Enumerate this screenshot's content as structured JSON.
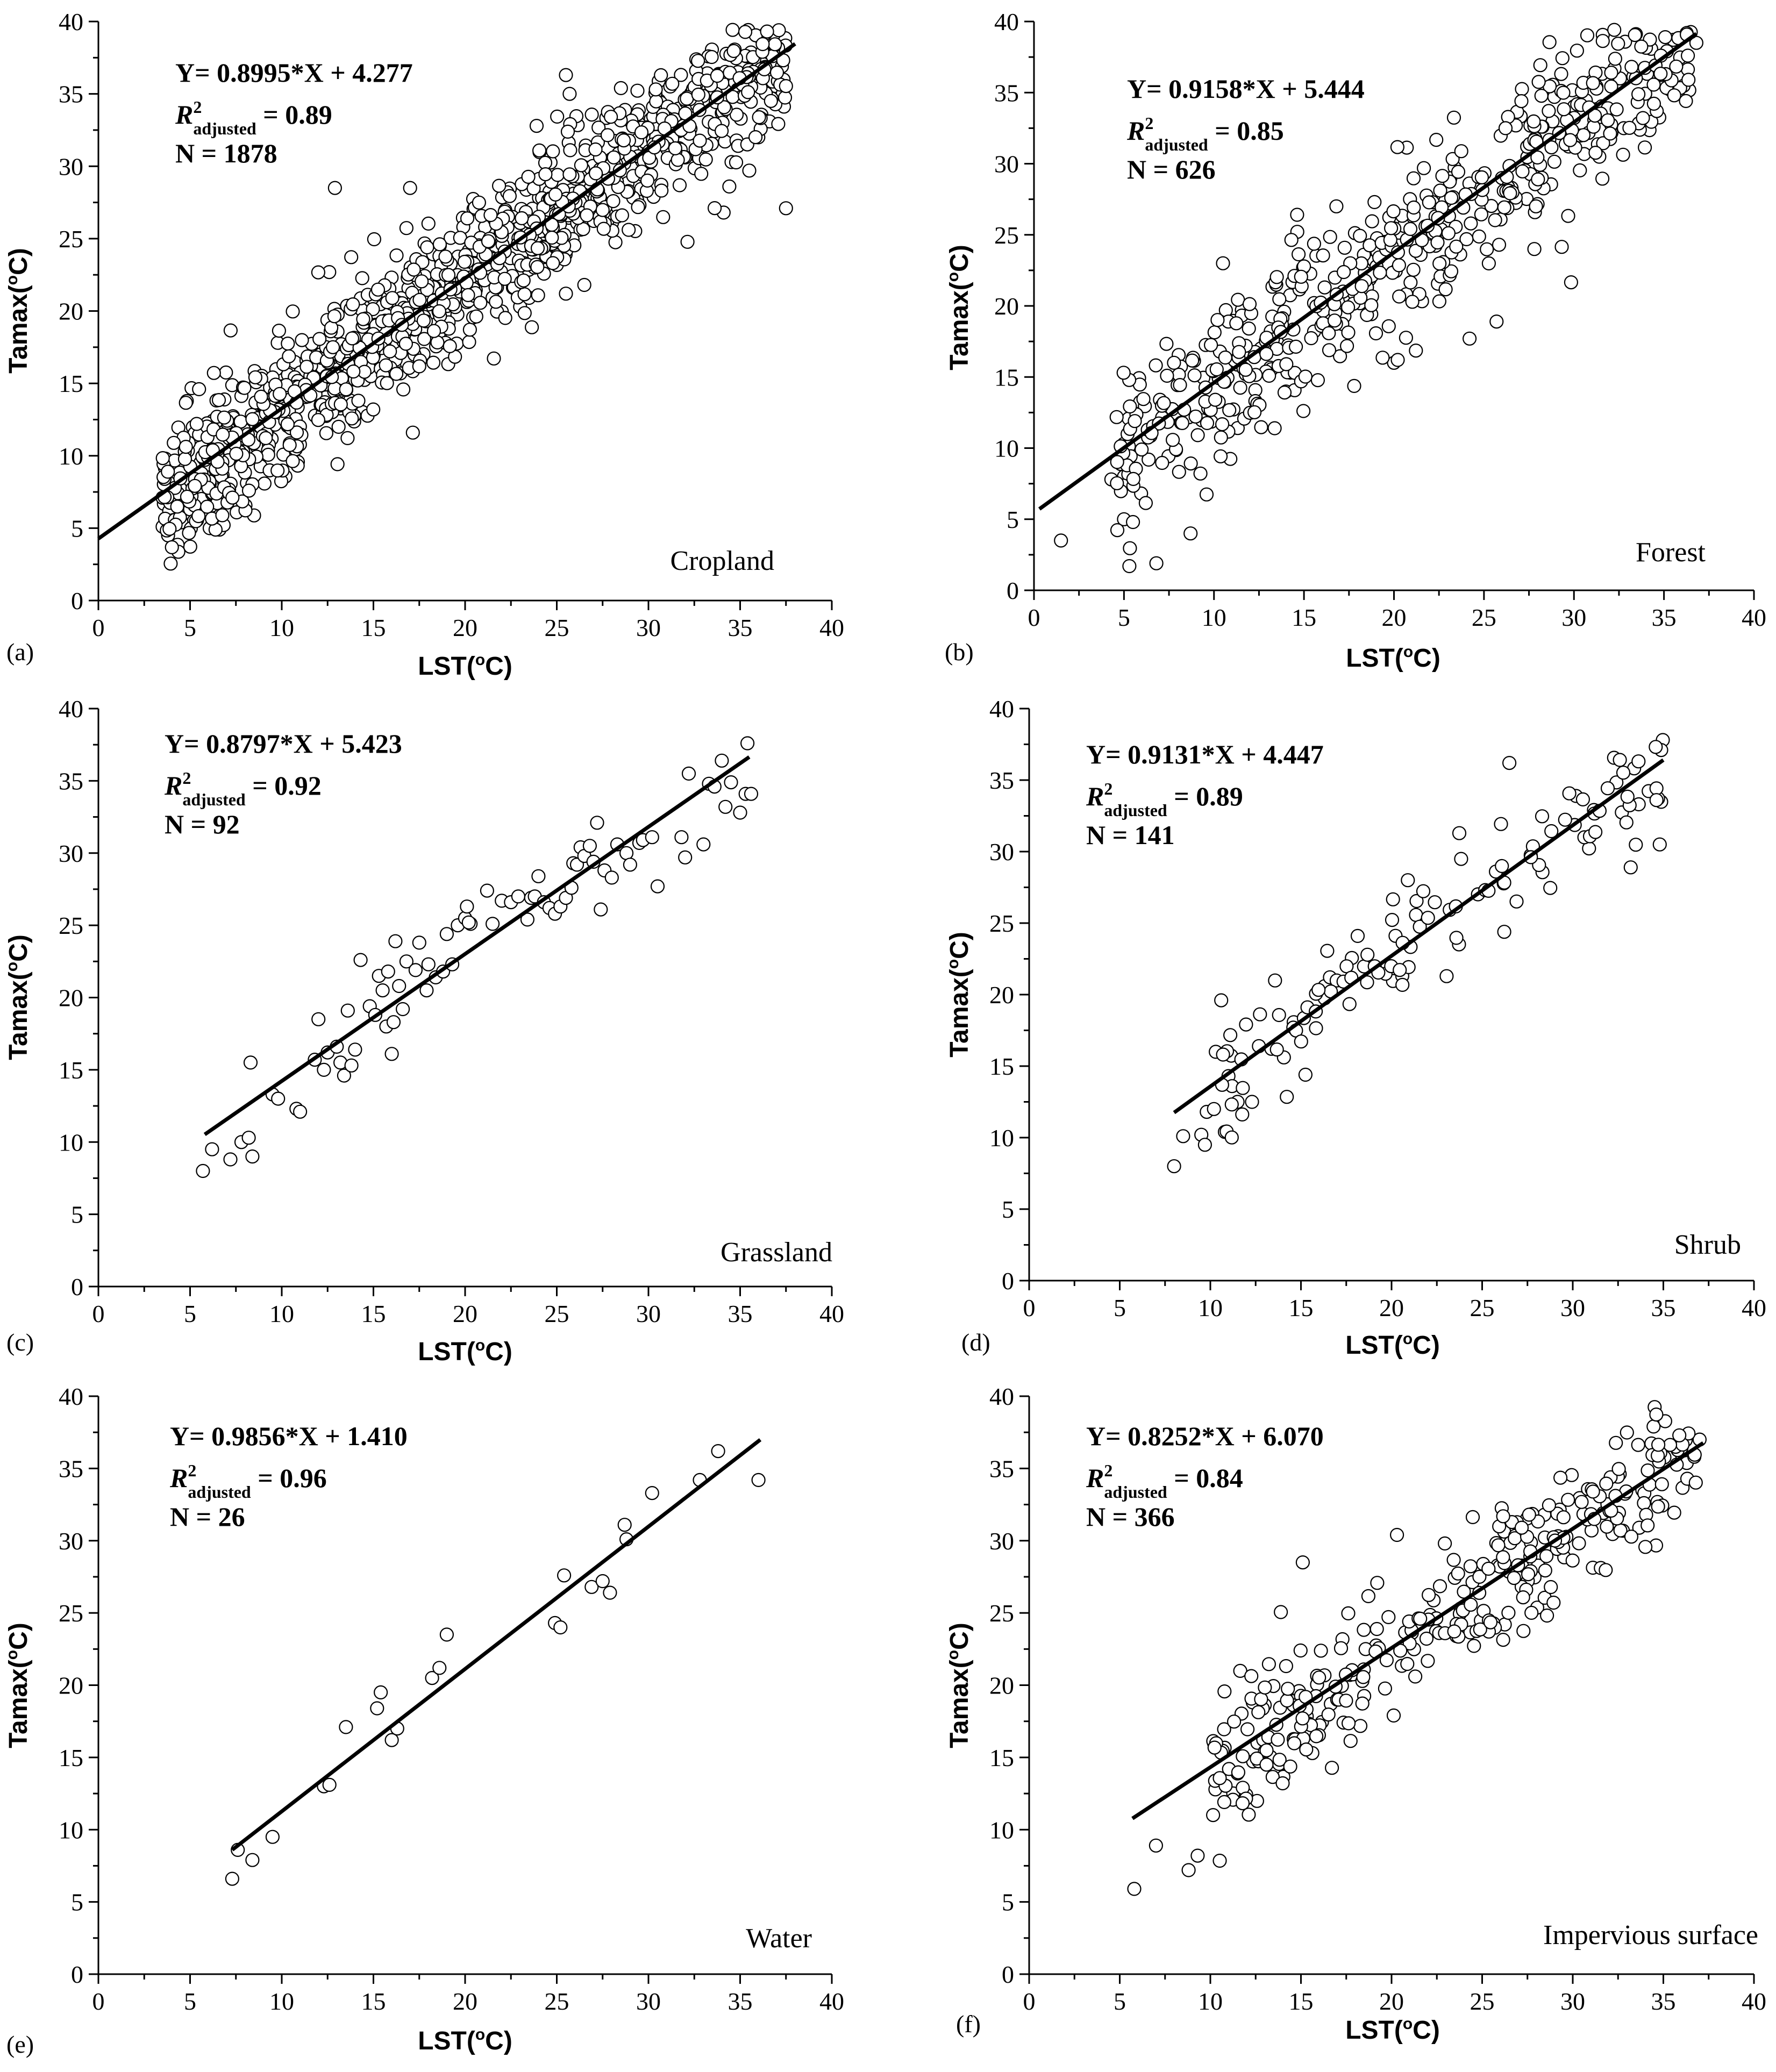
{
  "figure": {
    "x_axis_label": "LST(",
    "x_axis_unit_sup": "o",
    "x_axis_unit_tail": "C)",
    "y_axis_label": "Tamax(",
    "y_axis_unit_sup": "o",
    "y_axis_unit_tail": "C)"
  },
  "chart_data": [
    {
      "type": "scatter",
      "panel": "(a)",
      "class_name": "Cropland",
      "equation": "Y= 0.8995*X + 4.277",
      "r2_prefix": "R",
      "r2_sup": "2",
      "r2_sub": "adjusted",
      "r2_value": " = 0.89",
      "n_text": "N = 1878",
      "slope": 0.8995,
      "intercept": 4.277,
      "r2_adjusted": 0.89,
      "n": 1878,
      "xlim": [
        0,
        40
      ],
      "ylim": [
        0,
        40
      ],
      "xticks": [
        0,
        5,
        10,
        15,
        20,
        25,
        30,
        35,
        40
      ],
      "yticks": [
        0,
        5,
        10,
        15,
        20,
        25,
        30,
        35,
        40
      ],
      "fit_x_range": [
        0,
        38
      ],
      "sample_x_range": [
        3.5,
        37.5
      ],
      "sample_size": 1200,
      "sample_spread": 2.4,
      "points": [
        [
          3.5,
          5.1
        ],
        [
          3.8,
          4.5
        ],
        [
          4.2,
          5.9
        ],
        [
          5.0,
          6.3
        ],
        [
          6.6,
          4.9
        ],
        [
          6.4,
          9.0
        ],
        [
          12.9,
          28.5
        ],
        [
          17.0,
          28.5
        ],
        [
          23.0,
          20.3
        ],
        [
          25.5,
          21.2
        ],
        [
          25.5,
          36.3
        ],
        [
          25.7,
          35.0
        ],
        [
          26.5,
          21.8
        ],
        [
          34.1,
          26.8
        ],
        [
          35.5,
          29.7
        ],
        [
          37.5,
          27.1
        ]
      ]
    },
    {
      "type": "scatter",
      "panel": "(b)",
      "class_name": "Forest",
      "equation": "Y= 0.9158*X + 5.444",
      "r2_prefix": "R",
      "r2_sup": "2",
      "r2_sub": "adjusted",
      "r2_value": " = 0.85",
      "n_text": "N = 626",
      "slope": 0.9158,
      "intercept": 5.444,
      "r2_adjusted": 0.85,
      "n": 626,
      "xlim": [
        0,
        40
      ],
      "ylim": [
        0,
        40
      ],
      "xticks": [
        0,
        5,
        10,
        15,
        20,
        25,
        30,
        35,
        40
      ],
      "yticks": [
        0,
        5,
        10,
        15,
        20,
        25,
        30,
        35,
        40
      ],
      "fit_x_range": [
        0.3,
        36.8
      ],
      "sample_x_range": [
        4.5,
        36.5
      ],
      "sample_size": 560,
      "sample_spread": 2.8,
      "points": [
        [
          1.5,
          3.5
        ],
        [
          5.0,
          5.0
        ],
        [
          5.5,
          4.8
        ],
        [
          5.3,
          1.7
        ],
        [
          6.8,
          1.9
        ],
        [
          8.7,
          4.0
        ],
        [
          5.0,
          8.0
        ],
        [
          4.3,
          7.8
        ],
        [
          10.5,
          23.0
        ],
        [
          16.8,
          27.0
        ],
        [
          20.0,
          16.0
        ],
        [
          24.2,
          17.7
        ],
        [
          25.7,
          18.9
        ],
        [
          27.8,
          24.0
        ],
        [
          36.8,
          38.5
        ]
      ]
    },
    {
      "type": "scatter",
      "panel": "(c)",
      "class_name": "Grassland",
      "equation": "Y= 0.8797*X + 5.423",
      "r2_prefix": "R",
      "r2_sup": "2",
      "r2_sub": "adjusted",
      "r2_value": " = 0.92",
      "n_text": "N = 92",
      "slope": 0.8797,
      "intercept": 5.423,
      "r2_adjusted": 0.92,
      "n": 92,
      "xlim": [
        0,
        40
      ],
      "ylim": [
        0,
        40
      ],
      "xticks": [
        0,
        5,
        10,
        15,
        20,
        25,
        30,
        35,
        40
      ],
      "yticks": [
        0,
        5,
        10,
        15,
        20,
        25,
        30,
        35,
        40
      ],
      "fit_x_range": [
        5.8,
        35.5
      ],
      "points": [
        [
          5.7,
          8.0
        ],
        [
          6.2,
          9.5
        ],
        [
          7.2,
          8.8
        ],
        [
          7.8,
          10.0
        ],
        [
          8.2,
          10.3
        ],
        [
          8.4,
          9.0
        ],
        [
          8.3,
          15.5
        ],
        [
          9.5,
          13.3
        ],
        [
          9.8,
          13.0
        ],
        [
          10.8,
          12.3
        ],
        [
          11.0,
          12.1
        ],
        [
          11.8,
          15.7
        ],
        [
          12.0,
          18.5
        ],
        [
          12.3,
          15.0
        ],
        [
          12.5,
          16.2
        ],
        [
          13.0,
          16.6
        ],
        [
          13.2,
          15.5
        ],
        [
          13.4,
          14.6
        ],
        [
          13.6,
          19.1
        ],
        [
          13.8,
          15.3
        ],
        [
          14.0,
          16.4
        ],
        [
          14.3,
          22.6
        ],
        [
          14.8,
          19.4
        ],
        [
          15.1,
          18.8
        ],
        [
          15.3,
          21.5
        ],
        [
          15.5,
          20.5
        ],
        [
          15.7,
          18.0
        ],
        [
          15.8,
          21.8
        ],
        [
          16.0,
          16.1
        ],
        [
          16.1,
          18.3
        ],
        [
          16.2,
          23.9
        ],
        [
          16.4,
          20.8
        ],
        [
          16.6,
          19.2
        ],
        [
          16.8,
          22.5
        ],
        [
          17.5,
          23.8
        ],
        [
          17.9,
          20.5
        ],
        [
          18.0,
          22.3
        ],
        [
          18.4,
          21.4
        ],
        [
          18.8,
          21.8
        ],
        [
          19.0,
          24.4
        ],
        [
          19.3,
          22.3
        ],
        [
          19.6,
          25.0
        ],
        [
          20.0,
          25.5
        ],
        [
          20.1,
          26.3
        ],
        [
          20.3,
          25.1
        ],
        [
          21.2,
          27.4
        ],
        [
          21.5,
          25.1
        ],
        [
          22.0,
          26.7
        ],
        [
          22.5,
          26.6
        ],
        [
          22.9,
          27.0
        ],
        [
          23.4,
          25.4
        ],
        [
          23.6,
          26.9
        ],
        [
          23.8,
          27.0
        ],
        [
          24.0,
          28.4
        ],
        [
          24.3,
          26.6
        ],
        [
          24.6,
          26.2
        ],
        [
          24.9,
          25.8
        ],
        [
          25.2,
          26.3
        ],
        [
          25.5,
          26.9
        ],
        [
          25.8,
          27.6
        ],
        [
          25.9,
          29.3
        ],
        [
          26.1,
          29.2
        ],
        [
          26.3,
          30.4
        ],
        [
          26.5,
          29.8
        ],
        [
          26.8,
          30.5
        ],
        [
          27.0,
          29.4
        ],
        [
          27.2,
          32.1
        ],
        [
          27.4,
          26.1
        ],
        [
          27.6,
          28.8
        ],
        [
          28.0,
          28.3
        ],
        [
          28.3,
          30.6
        ],
        [
          28.8,
          30.0
        ],
        [
          29.0,
          29.2
        ],
        [
          29.5,
          30.7
        ],
        [
          29.7,
          30.9
        ],
        [
          30.2,
          31.1
        ],
        [
          30.5,
          27.7
        ],
        [
          31.8,
          31.1
        ],
        [
          32.0,
          29.7
        ],
        [
          32.2,
          35.5
        ],
        [
          33.0,
          30.6
        ],
        [
          33.3,
          34.8
        ],
        [
          33.6,
          34.6
        ],
        [
          34.0,
          36.4
        ],
        [
          34.2,
          33.2
        ],
        [
          34.5,
          34.9
        ],
        [
          35.0,
          32.8
        ],
        [
          35.3,
          34.1
        ],
        [
          35.6,
          34.1
        ],
        [
          35.4,
          37.6
        ],
        [
          20.2,
          25.2
        ],
        [
          17.3,
          21.9
        ]
      ]
    },
    {
      "type": "scatter",
      "panel": "(d)",
      "class_name": "Shrub",
      "equation": "Y= 0.9131*X + 4.447",
      "r2_prefix": "R",
      "r2_sup": "2",
      "r2_sub": "adjusted",
      "r2_value": " = 0.89",
      "n_text": "N = 141",
      "slope": 0.9131,
      "intercept": 4.447,
      "r2_adjusted": 0.89,
      "n": 141,
      "xlim": [
        0,
        40
      ],
      "ylim": [
        0,
        40
      ],
      "xticks": [
        0,
        5,
        10,
        15,
        20,
        25,
        30,
        35,
        40
      ],
      "yticks": [
        0,
        5,
        10,
        15,
        20,
        25,
        30,
        35,
        40
      ],
      "fit_x_range": [
        8.0,
        35.0
      ],
      "sample_x_range": [
        10.5,
        35.2
      ],
      "sample_size": 125,
      "sample_spread": 2.0,
      "points": [
        [
          8.0,
          8.0
        ],
        [
          8.5,
          10.1
        ],
        [
          9.5,
          10.2
        ],
        [
          9.7,
          9.5
        ],
        [
          9.8,
          11.8
        ],
        [
          10.2,
          12.0
        ],
        [
          10.3,
          16.0
        ],
        [
          10.6,
          19.6
        ],
        [
          10.8,
          10.4
        ],
        [
          11.0,
          14.3
        ],
        [
          11.2,
          13.6
        ],
        [
          11.5,
          12.5
        ],
        [
          12.3,
          12.5
        ],
        [
          26.5,
          36.2
        ],
        [
          33.2,
          28.9
        ],
        [
          34.8,
          30.5
        ]
      ]
    },
    {
      "type": "scatter",
      "panel": "(e)",
      "class_name": "Water",
      "equation": "Y= 0.9856*X + 1.410",
      "r2_prefix": "R",
      "r2_sup": "2",
      "r2_sub": "adjusted",
      "r2_value": " = 0.96",
      "n_text": "N = 26",
      "slope": 0.9856,
      "intercept": 1.41,
      "r2_adjusted": 0.96,
      "n": 26,
      "xlim": [
        0,
        40
      ],
      "ylim": [
        0,
        40
      ],
      "xticks": [
        0,
        5,
        10,
        15,
        20,
        25,
        30,
        35,
        40
      ],
      "yticks": [
        0,
        5,
        10,
        15,
        20,
        25,
        30,
        35,
        40
      ],
      "fit_x_range": [
        7.3,
        36.1
      ],
      "points": [
        [
          7.3,
          6.6
        ],
        [
          7.6,
          8.6
        ],
        [
          8.4,
          7.9
        ],
        [
          9.5,
          9.5
        ],
        [
          12.3,
          13.0
        ],
        [
          12.6,
          13.1
        ],
        [
          13.5,
          17.1
        ],
        [
          15.2,
          18.4
        ],
        [
          15.4,
          19.5
        ],
        [
          16.0,
          16.2
        ],
        [
          16.3,
          17.0
        ],
        [
          18.2,
          20.5
        ],
        [
          18.6,
          21.2
        ],
        [
          19.0,
          23.5
        ],
        [
          24.9,
          24.3
        ],
        [
          25.2,
          24.0
        ],
        [
          25.4,
          27.6
        ],
        [
          26.9,
          26.8
        ],
        [
          27.5,
          27.2
        ],
        [
          27.9,
          26.4
        ],
        [
          28.7,
          31.1
        ],
        [
          28.8,
          30.1
        ],
        [
          30.2,
          33.3
        ],
        [
          32.8,
          34.2
        ],
        [
          33.8,
          36.2
        ],
        [
          36.0,
          34.2
        ]
      ]
    },
    {
      "type": "scatter",
      "panel": "(f)",
      "class_name": "Impervious surface",
      "equation": "Y= 0.8252*X + 6.070",
      "r2_prefix": "R",
      "r2_sup": "2",
      "r2_sub": "adjusted",
      "r2_value": " = 0.84",
      "n_text": "N = 366",
      "slope": 0.8252,
      "intercept": 6.07,
      "r2_adjusted": 0.84,
      "n": 366,
      "xlim": [
        0,
        40
      ],
      "ylim": [
        0,
        40
      ],
      "xticks": [
        0,
        5,
        10,
        15,
        20,
        25,
        30,
        35,
        40
      ],
      "yticks": [
        0,
        5,
        10,
        15,
        20,
        25,
        30,
        35,
        40
      ],
      "fit_x_range": [
        5.7,
        37.2
      ],
      "sample_x_range": [
        10.0,
        37.0
      ],
      "sample_size": 340,
      "sample_spread": 2.3,
      "points": [
        [
          5.8,
          5.9
        ],
        [
          7.0,
          8.9
        ],
        [
          8.8,
          7.2
        ],
        [
          9.3,
          8.2
        ],
        [
          15.1,
          28.5
        ],
        [
          20.3,
          30.4
        ],
        [
          37.0,
          37.0
        ]
      ]
    }
  ]
}
